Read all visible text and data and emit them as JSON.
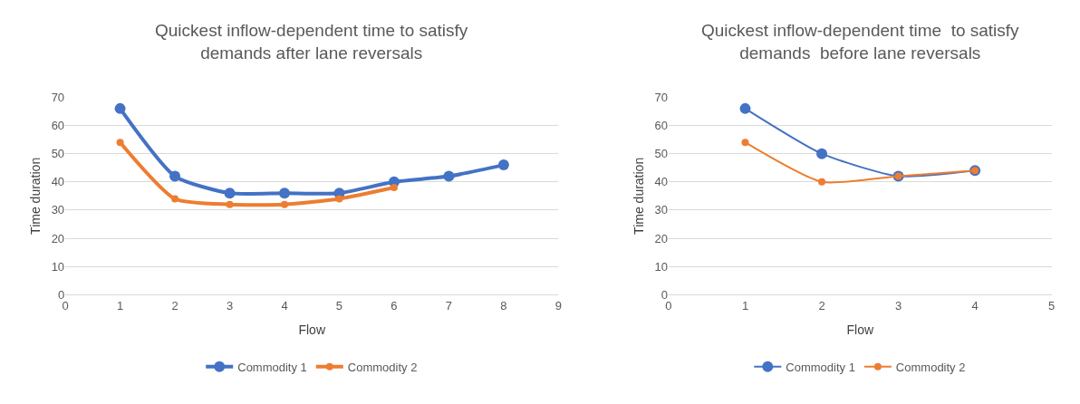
{
  "chart_data": [
    {
      "type": "line",
      "title": "Quickest inflow-dependent time to satisfy\ndemands after lane reversals",
      "xlabel": "Flow",
      "ylabel": "Time duration",
      "xlim": [
        0,
        9
      ],
      "xticks": [
        0,
        1,
        2,
        3,
        4,
        5,
        6,
        7,
        8,
        9
      ],
      "ylim": [
        0,
        70
      ],
      "yticks": [
        0,
        10,
        20,
        30,
        40,
        50,
        60,
        70
      ],
      "grid": "y",
      "legend": "bottom",
      "marker": "circle",
      "series": [
        {
          "name": "Commodity 1",
          "color": "#4472c4",
          "x": [
            1,
            2,
            3,
            4,
            5,
            6,
            7,
            8
          ],
          "values": [
            66,
            42,
            36,
            36,
            36,
            40,
            42,
            46
          ]
        },
        {
          "name": "Commodity 2",
          "color": "#ed7d31",
          "x": [
            1,
            2,
            3,
            4,
            5,
            6
          ],
          "values": [
            54,
            34,
            32,
            32,
            34,
            38
          ]
        }
      ]
    },
    {
      "type": "line",
      "title": "Quickest inflow-dependent time  to satisfy\ndemands  before lane reversals",
      "xlabel": "Flow",
      "ylabel": "Time duration",
      "xlim": [
        0,
        5
      ],
      "xticks": [
        0,
        1,
        2,
        3,
        4,
        5
      ],
      "ylim": [
        0,
        70
      ],
      "yticks": [
        0,
        10,
        20,
        30,
        40,
        50,
        60,
        70
      ],
      "grid": "y",
      "legend": "bottom",
      "marker": "circle",
      "series": [
        {
          "name": "Commodity 1",
          "color": "#4472c4",
          "x": [
            1,
            2,
            3,
            4
          ],
          "values": [
            66,
            50,
            42,
            44
          ]
        },
        {
          "name": "Commodity 2",
          "color": "#ed7d31",
          "x": [
            1,
            2,
            3,
            4
          ],
          "values": [
            54,
            40,
            42,
            44
          ]
        }
      ]
    }
  ]
}
